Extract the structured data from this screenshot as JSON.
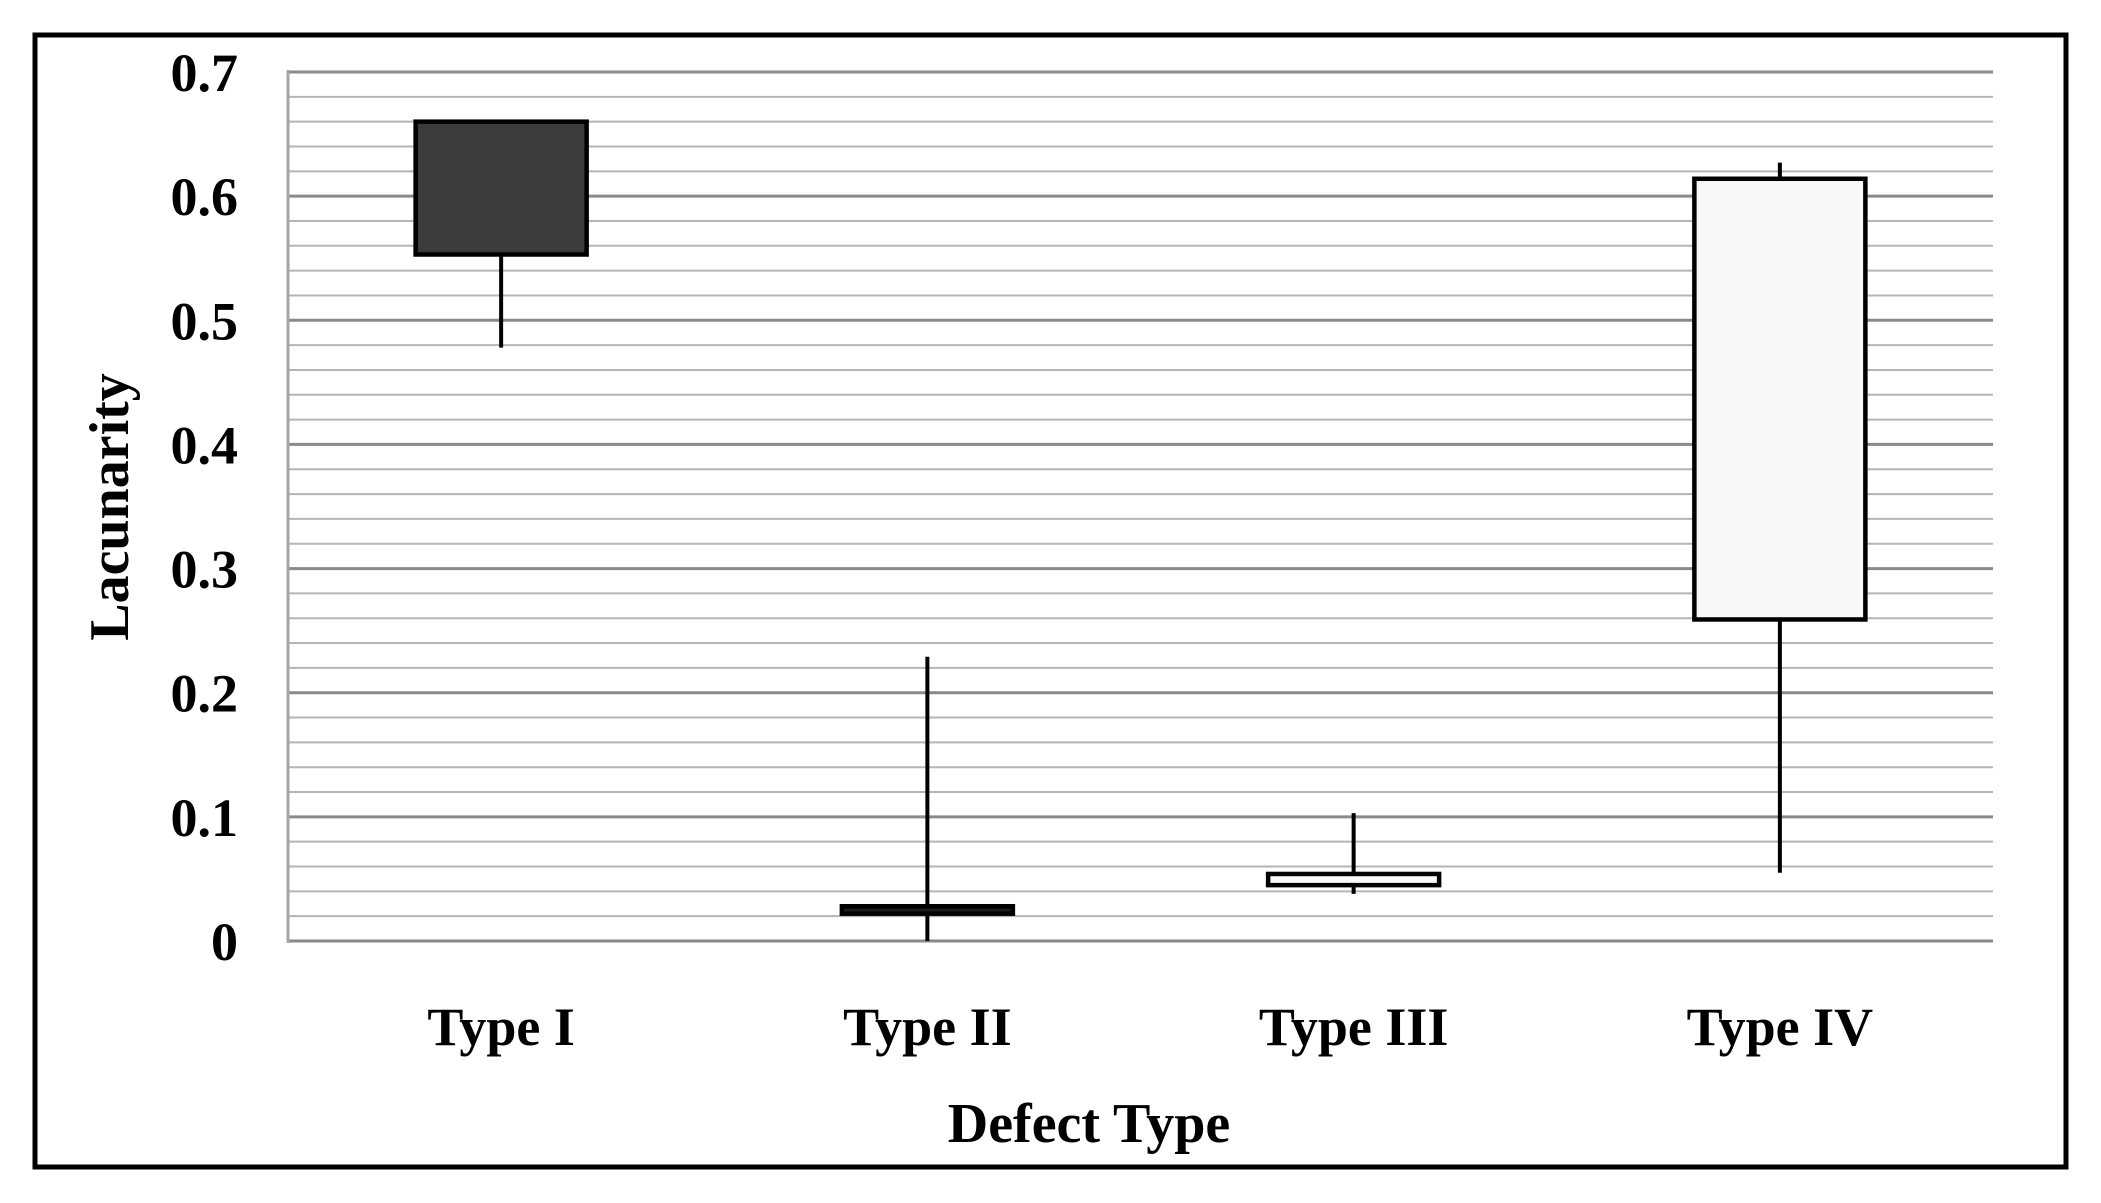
{
  "chart_data": {
    "type": "boxplot",
    "title": "",
    "xlabel": "Defect Type",
    "ylabel": "Lacunarity",
    "ylim": [
      0,
      0.7
    ],
    "ytick_step": 0.1,
    "ytick_labels": [
      "0",
      "0.1",
      "0.2",
      "0.3",
      "0.4",
      "0.5",
      "0.6",
      "0.7"
    ],
    "minor_gridline_step": 0.02,
    "grid": "horizontal-only",
    "legend": "none",
    "categories": [
      "Type I",
      "Type II",
      "Type III",
      "Type IV"
    ],
    "boxes": [
      {
        "category": "Type I",
        "whisker_high": 0.66,
        "box_top": 0.66,
        "box_bottom": 0.553,
        "whisker_low": 0.478,
        "fill": "#3c3c3c"
      },
      {
        "category": "Type II",
        "whisker_high": 0.229,
        "box_top": 0.028,
        "box_bottom": 0.022,
        "whisker_low": 0.0,
        "fill": "#1a1a1a"
      },
      {
        "category": "Type III",
        "whisker_high": 0.103,
        "box_top": 0.054,
        "box_bottom": 0.045,
        "whisker_low": 0.038,
        "fill": "#f8f8f8"
      },
      {
        "category": "Type IV",
        "whisker_high": 0.627,
        "box_top": 0.614,
        "box_bottom": 0.259,
        "whisker_low": 0.055,
        "fill": "#f8f8f8"
      }
    ],
    "colors": {
      "box_border": "#000000",
      "whisker": "#000000",
      "minor_gridline": "#b5b5b5",
      "major_gridline": "#8a8a8a",
      "axis_line": "#a6a6a6",
      "figure_border": "#000000",
      "background": "#ffffff"
    }
  }
}
